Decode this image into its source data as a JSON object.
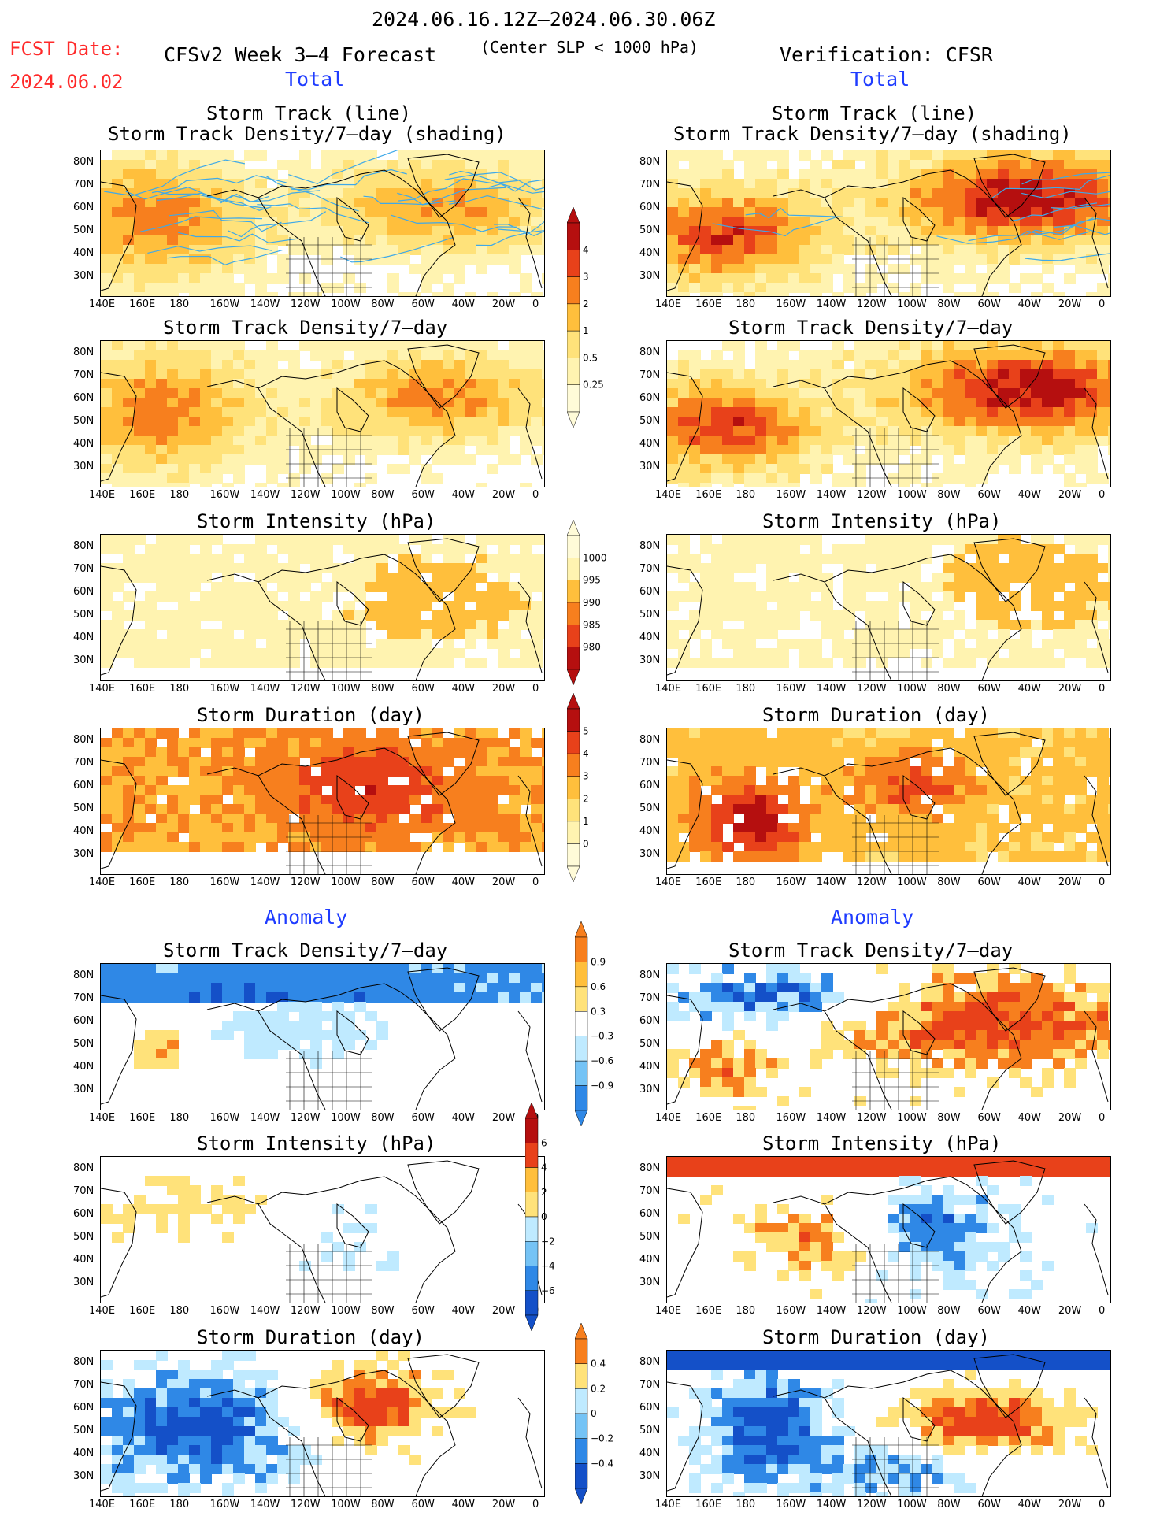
{
  "header": {
    "period": "2024.06.16.12Z–2024.06.30.06Z",
    "fcst_label": "FCST Date:",
    "fcst_date": "2024.06.02",
    "left_title": "CFSv2 Week 3–4 Forecast",
    "condition": "(Center SLP < 1000 hPa)",
    "right_title": "Verification: CFSR",
    "left_total": "Total",
    "right_total": "Total",
    "left_anomaly": "Anomaly",
    "right_anomaly": "Anomaly"
  },
  "panel_titles": {
    "track_line": "Storm Track (line)",
    "track_shading": "Storm Track Density/7–day (shading)",
    "density": "Storm Track Density/7–day",
    "intensity": "Storm Intensity (hPa)",
    "duration": "Storm Duration (day)"
  },
  "axes": {
    "lon_labels": [
      "140E",
      "160E",
      "180",
      "160W",
      "140W",
      "120W",
      "100W",
      "80W",
      "60W",
      "40W",
      "20W",
      "0"
    ],
    "lat_labels": [
      "80N",
      "70N",
      "60N",
      "50N",
      "40N",
      "30N"
    ]
  },
  "colorbars": {
    "density_total": [
      "4",
      "3",
      "2",
      "1",
      "0.5",
      "0.25"
    ],
    "intensity_total": [
      "1000",
      "995",
      "990",
      "985",
      "980"
    ],
    "duration_total": [
      "5",
      "4",
      "3",
      "2",
      "1",
      "0"
    ],
    "density_anom": [
      "0.9",
      "0.6",
      "0.3",
      "−0.3",
      "−0.6",
      "−0.9"
    ],
    "intensity_anom": [
      "6",
      "4",
      "2",
      "0",
      "−2",
      "−4",
      "−6"
    ],
    "duration_anom": [
      "0.4",
      "0.2",
      "0",
      "−0.2",
      "−0.4"
    ]
  },
  "colors": {
    "title_red": "#ff2a2a",
    "title_blue": "#1f3cff",
    "warm_1": "#fff3b0",
    "warm_2": "#ffe27a",
    "warm_3": "#ffbf3c",
    "warm_4": "#f77f1e",
    "warm_5": "#e8411a",
    "warm_6": "#b50f0f",
    "cool_1": "#bfeaff",
    "cool_2": "#75c3f5",
    "cool_3": "#2f88e6",
    "cool_4": "#1450c8",
    "track_line": "#3fa9e8"
  }
}
